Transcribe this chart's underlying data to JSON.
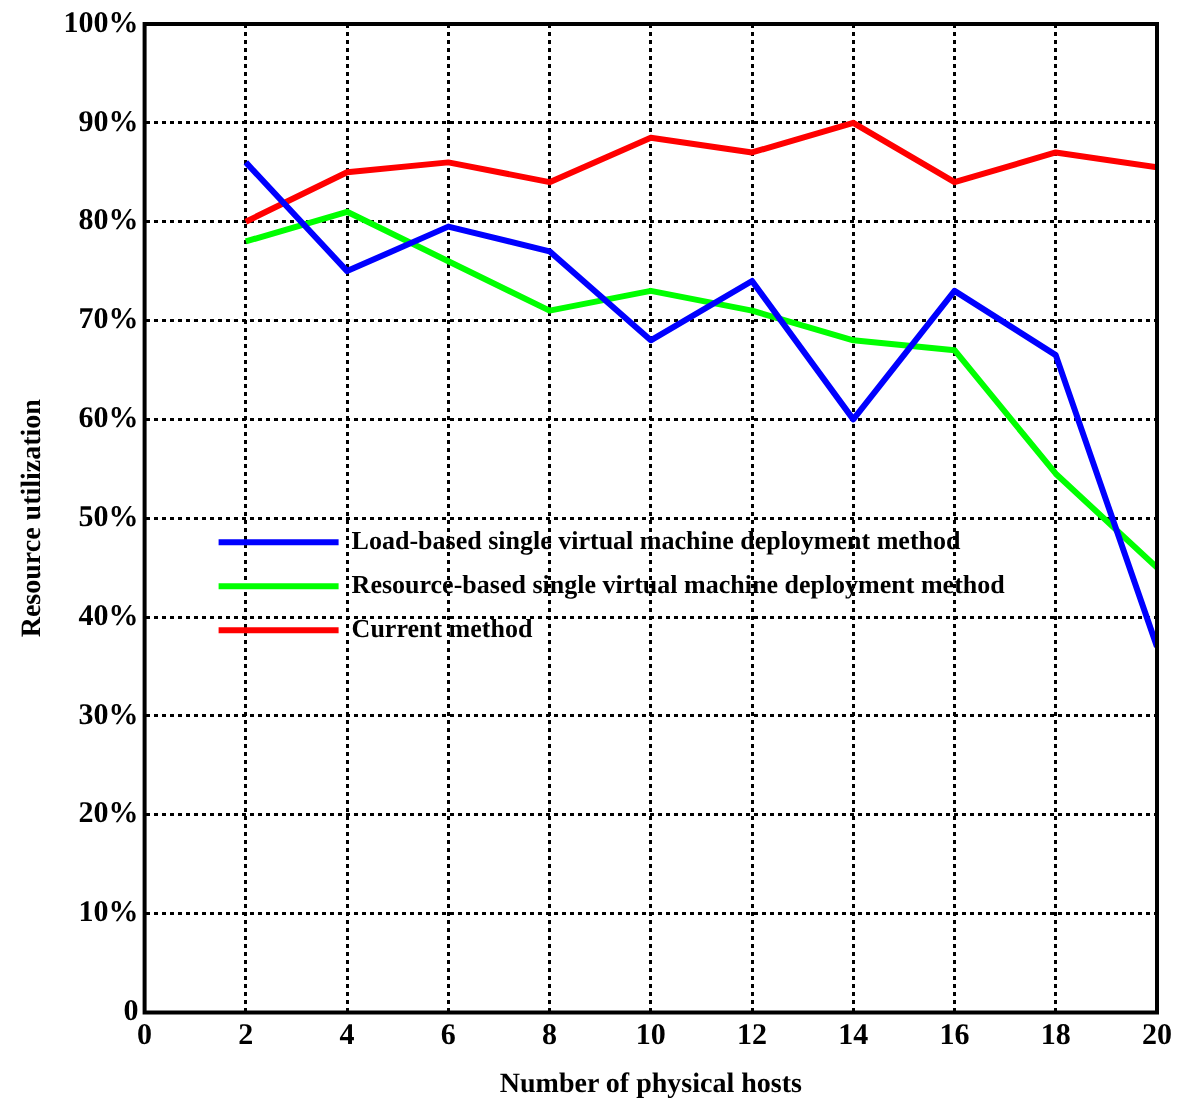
{
  "chart_data": {
    "type": "line",
    "xlabel": "Number of physical hosts",
    "ylabel": "Resource utilization",
    "x": [
      2,
      4,
      6,
      8,
      10,
      12,
      14,
      16,
      18,
      20
    ],
    "series": [
      {
        "name": "Load-based single virtual machine deployment method",
        "color": "#0000ff",
        "values": [
          86,
          75,
          79.5,
          77,
          68,
          74,
          60,
          73,
          66.5,
          37
        ]
      },
      {
        "name": "Resource-based single virtual machine deployment method",
        "color": "#00ff00",
        "values": [
          78,
          81,
          76,
          71,
          73,
          71,
          68,
          67,
          54.5,
          45
        ]
      },
      {
        "name": "Current method",
        "color": "#ff0000",
        "values": [
          80,
          85,
          86,
          84,
          88.5,
          87,
          90,
          84,
          87,
          85.5
        ]
      }
    ],
    "xlim": [
      0,
      20
    ],
    "xticks": [
      0,
      2,
      4,
      6,
      8,
      10,
      12,
      14,
      16,
      18,
      20
    ],
    "ylim": [
      0,
      100
    ],
    "yticks": [
      {
        "value": 0,
        "label": "0"
      },
      {
        "value": 10,
        "label": "10%"
      },
      {
        "value": 20,
        "label": "20%"
      },
      {
        "value": 30,
        "label": "30%"
      },
      {
        "value": 40,
        "label": "40%"
      },
      {
        "value": 50,
        "label": "50%"
      },
      {
        "value": 60,
        "label": "60%"
      },
      {
        "value": 70,
        "label": "70%"
      },
      {
        "value": 80,
        "label": "80%"
      },
      {
        "value": 90,
        "label": "90%"
      },
      {
        "value": 100,
        "label": "100%"
      }
    ],
    "grid": true,
    "legend": "left",
    "marker": "none",
    "line_style": "solid"
  }
}
